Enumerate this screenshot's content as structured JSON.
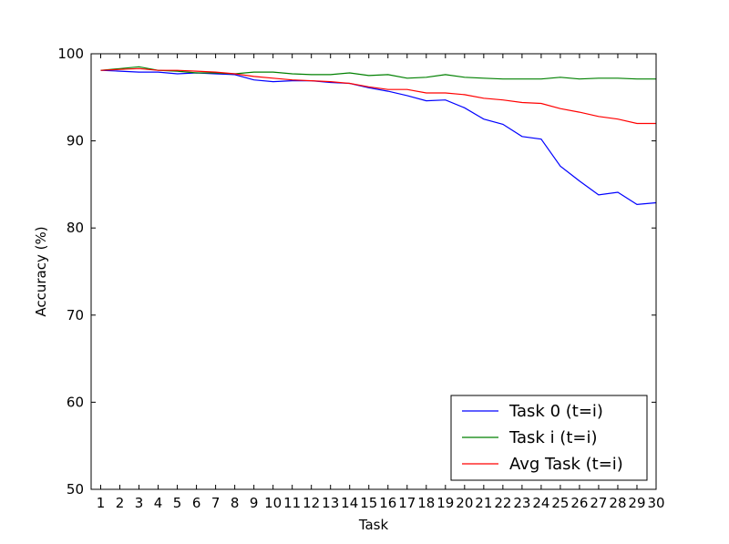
{
  "chart_data": {
    "type": "line",
    "xlabel": "Task",
    "ylabel": "Accuracy (%)",
    "xlim": [
      0.5,
      30
    ],
    "ylim": [
      50,
      100
    ],
    "x_ticks": [
      "1",
      "2",
      "3",
      "4",
      "5",
      "6",
      "7",
      "8",
      "9",
      "10",
      "11",
      "12",
      "13",
      "14",
      "15",
      "16",
      "17",
      "18",
      "19",
      "20",
      "21",
      "22",
      "23",
      "24",
      "25",
      "26",
      "27",
      "28",
      "29",
      "30"
    ],
    "y_ticks": [
      "50",
      "60",
      "70",
      "80",
      "90",
      "100"
    ],
    "x": [
      1,
      2,
      3,
      4,
      5,
      6,
      7,
      8,
      9,
      10,
      11,
      12,
      13,
      14,
      15,
      16,
      17,
      18,
      19,
      20,
      21,
      22,
      23,
      24,
      25,
      26,
      27,
      28,
      29,
      30
    ],
    "legend_position": "lower-right",
    "grid": false,
    "series": [
      {
        "name": "Task 0 (t=i)",
        "color": "#0000ff",
        "values": [
          98.1,
          98.0,
          97.9,
          97.9,
          97.7,
          97.8,
          97.7,
          97.6,
          97.0,
          96.8,
          96.9,
          96.9,
          96.7,
          96.6,
          96.1,
          95.7,
          95.2,
          94.6,
          94.7,
          93.8,
          92.5,
          91.9,
          90.5,
          90.2,
          87.1,
          85.4,
          83.8,
          84.1,
          82.7,
          82.9
        ]
      },
      {
        "name": "Task i (t=i)",
        "color": "#008000",
        "values": [
          98.1,
          98.3,
          98.5,
          98.1,
          98.0,
          97.8,
          97.8,
          97.7,
          97.9,
          97.9,
          97.7,
          97.6,
          97.6,
          97.8,
          97.5,
          97.6,
          97.2,
          97.3,
          97.6,
          97.3,
          97.2,
          97.1,
          97.1,
          97.1,
          97.3,
          97.1,
          97.2,
          97.2,
          97.1,
          97.1
        ]
      },
      {
        "name": "Avg Task (t=i)",
        "color": "#ff0000",
        "values": [
          98.1,
          98.2,
          98.3,
          98.1,
          98.1,
          98.0,
          97.9,
          97.7,
          97.4,
          97.2,
          97.0,
          96.9,
          96.8,
          96.6,
          96.2,
          95.9,
          95.9,
          95.5,
          95.5,
          95.3,
          94.9,
          94.7,
          94.4,
          94.3,
          93.7,
          93.3,
          92.8,
          92.5,
          92.0,
          92.0
        ]
      }
    ]
  }
}
